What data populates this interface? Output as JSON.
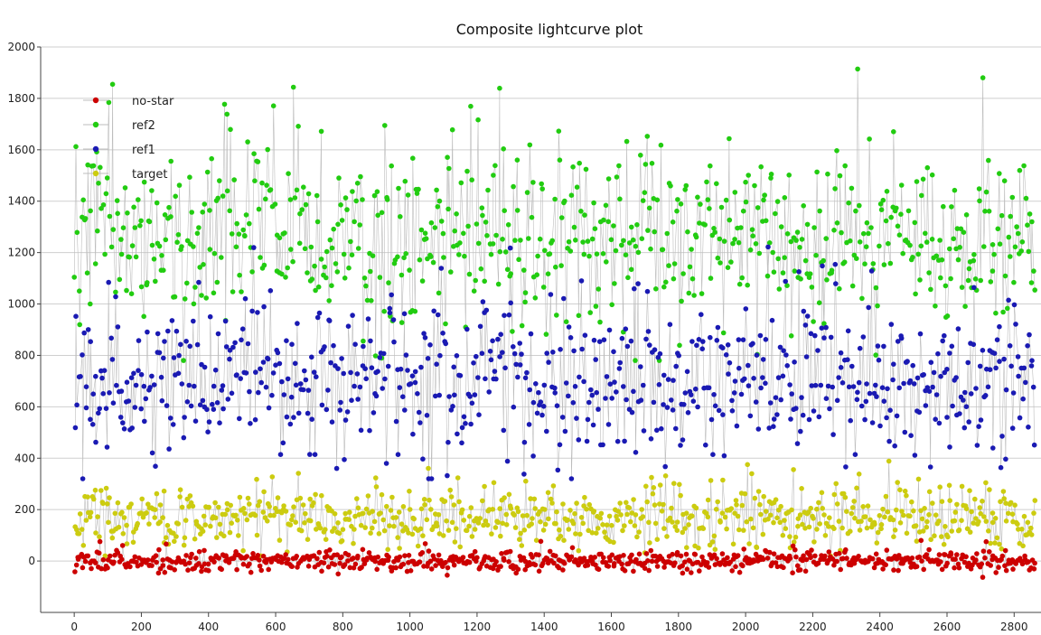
{
  "chart_data": {
    "type": "scatter",
    "title": "Composite lightcurve plot",
    "xlabel": "",
    "ylabel": "",
    "xlim": [
      -100,
      2880
    ],
    "ylim": [
      -200,
      2000
    ],
    "x_ticks": [
      0,
      200,
      400,
      600,
      800,
      1000,
      1200,
      1400,
      1600,
      1800,
      2000,
      2200,
      2400,
      2600,
      2800
    ],
    "y_ticks": [
      0,
      200,
      400,
      600,
      800,
      1000,
      1200,
      1400,
      1600,
      1800,
      2000
    ],
    "grid": true,
    "legend_position": "top-left",
    "x_range_observed": [
      0,
      2860
    ],
    "series": [
      {
        "name": "no-star",
        "color": "#cc0000",
        "marker": "circle",
        "typical_mean": 0,
        "typical_spread": 20,
        "observed_min": -80,
        "observed_max": 90
      },
      {
        "name": "ref2",
        "color": "#22cc11",
        "marker": "circle",
        "typical_mean": 1250,
        "typical_spread": 170,
        "observed_min": 780,
        "observed_max": 1960
      },
      {
        "name": "ref1",
        "color": "#1a1ab3",
        "marker": "circle",
        "typical_mean": 700,
        "typical_spread": 150,
        "observed_min": 320,
        "observed_max": 1230
      },
      {
        "name": "target",
        "color": "#cccc10",
        "marker": "circle",
        "typical_mean": 170,
        "typical_spread": 60,
        "observed_min": 20,
        "observed_max": 390
      }
    ]
  }
}
